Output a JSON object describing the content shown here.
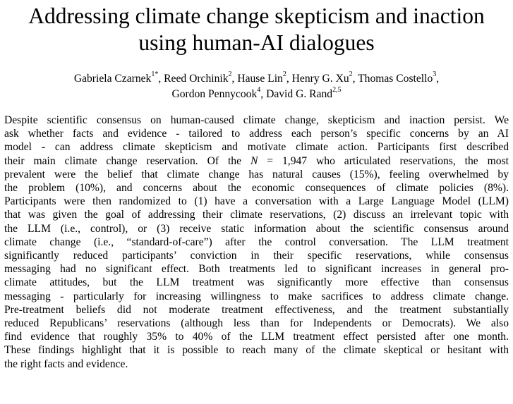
{
  "title": {
    "line1": "Addressing climate change skepticism and inaction",
    "line2": "using human-AI dialogues"
  },
  "authors": {
    "line1": [
      {
        "name": "Gabriela Czarnek",
        "sup": "1*",
        "sep": ", "
      },
      {
        "name": "Reed Orchinik",
        "sup": "2",
        "sep": ", "
      },
      {
        "name": "Hause Lin",
        "sup": "2",
        "sep": ", "
      },
      {
        "name": "Henry G. Xu",
        "sup": "2",
        "sep": ", "
      },
      {
        "name": "Thomas Costello",
        "sup": "3",
        "sep": ","
      }
    ],
    "line2": [
      {
        "name": "Gordon Pennycook",
        "sup": "4",
        "sep": ", "
      },
      {
        "name": "David G. Rand",
        "sup": "2,5",
        "sep": ""
      }
    ]
  },
  "abstract": {
    "lines": [
      "Despite scientific consensus on human-caused climate change, skepticism and inaction persist. We",
      "ask whether facts and evidence - tailored to address each person’s specific concerns by an AI",
      "model - can address climate skepticism and motivate climate action. Participants first described",
      "their main climate change reservation. Of the ",
      "prevalent were the belief that climate change has natural causes (15%), feeling overwhelmed by",
      "the problem (10%), and concerns about the economic consequences of climate policies (8%).",
      "Participants were then randomized to (1) have a conversation with a Large Language Model (LLM)",
      "that was given the goal of addressing their climate reservations, (2) discuss an irrelevant topic with",
      "the LLM (i.e., control), or (3) receive static information about the scientific consensus around",
      "climate change (i.e., “standard-of-care”) after the control conversation. The LLM treatment",
      "significantly reduced participants’ conviction in their specific reservations, while consensus",
      "messaging had no significant effect. Both treatments led to significant increases in general pro-",
      "climate attitudes, but the LLM treatment was significantly more effective than consensus",
      "messaging - particularly for increasing willingness to make sacrifices to address climate change.",
      "Pre-treatment beliefs did not moderate treatment effectiveness, and the treatment substantially",
      "reduced Republicans’ reservations (although  less than for Independents or Democrats). We also",
      "find evidence that roughly 35% to 40% of the LLM treatment effect persisted after one month.",
      "These findings highlight that it is possible to reach many of the climate skeptical or hesitant with",
      "the right facts and evidence."
    ],
    "line4_italic": "N",
    "line4_rest": " = 1,947 who articulated reservations, the most"
  }
}
